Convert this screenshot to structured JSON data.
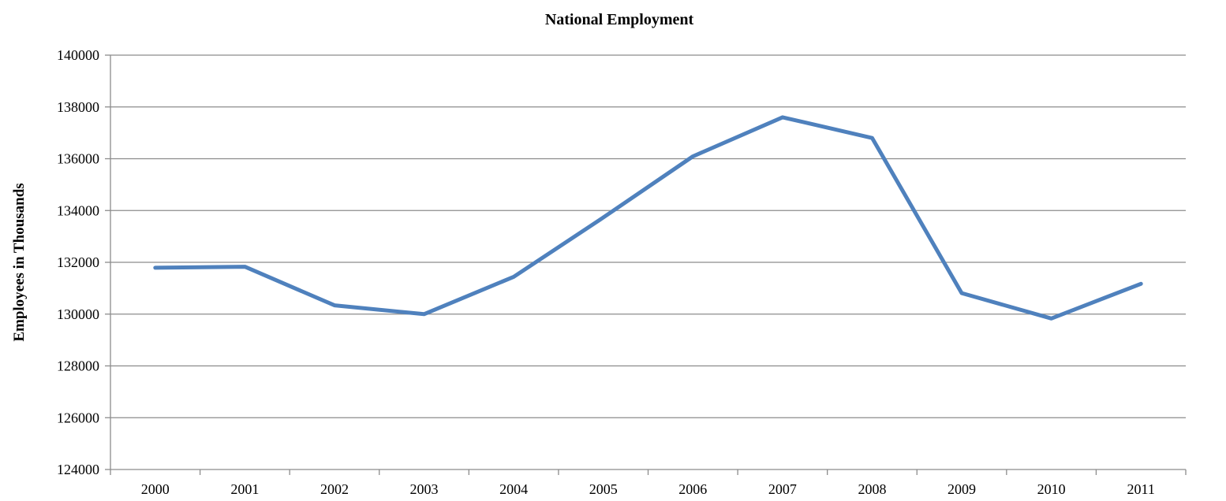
{
  "chart_data": {
    "type": "line",
    "title": "National Employment",
    "xlabel": "",
    "ylabel": "Employees in Thousands",
    "categories": [
      "2000",
      "2001",
      "2002",
      "2003",
      "2004",
      "2005",
      "2006",
      "2007",
      "2008",
      "2009",
      "2010",
      "2011"
    ],
    "series": [
      {
        "color": "#4f81bd",
        "values": [
          131790,
          131830,
          130340,
          130000,
          131440,
          133730,
          136090,
          137600,
          136800,
          130810,
          129830,
          131170
        ]
      }
    ],
    "ylim": [
      124000,
      140000
    ],
    "yticks": [
      124000,
      126000,
      128000,
      130000,
      132000,
      134000,
      136000,
      138000,
      140000
    ],
    "grid": true,
    "legend": "none"
  }
}
